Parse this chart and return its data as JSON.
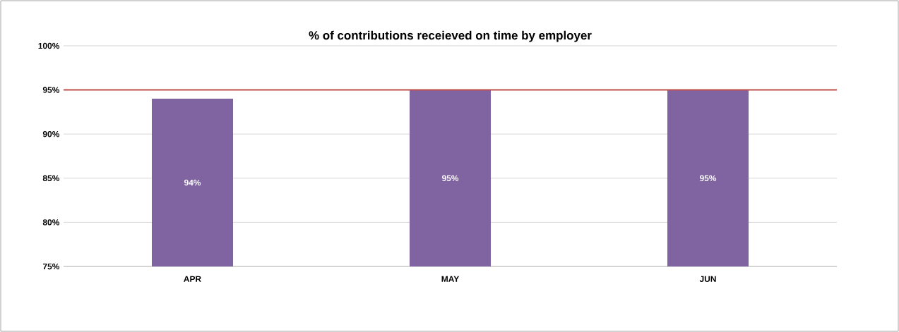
{
  "chart_data": {
    "type": "bar",
    "title": "% of contributions receieved on time by employer",
    "categories": [
      "APR",
      "MAY",
      "JUN"
    ],
    "values": [
      94,
      95,
      95
    ],
    "value_labels": [
      "94%",
      "95%",
      "95%"
    ],
    "color": "#8064a2",
    "ylim": [
      75,
      100
    ],
    "yticks": [
      {
        "value": 75,
        "label": "75%"
      },
      {
        "value": 80,
        "label": "80%"
      },
      {
        "value": 85,
        "label": "85%"
      },
      {
        "value": 90,
        "label": "90%"
      },
      {
        "value": 95,
        "label": "95%"
      },
      {
        "value": 100,
        "label": "100%"
      }
    ],
    "grid": "y",
    "ref_lines": [
      {
        "axis": "y",
        "value": 95,
        "color": "#c0504d"
      }
    ]
  }
}
